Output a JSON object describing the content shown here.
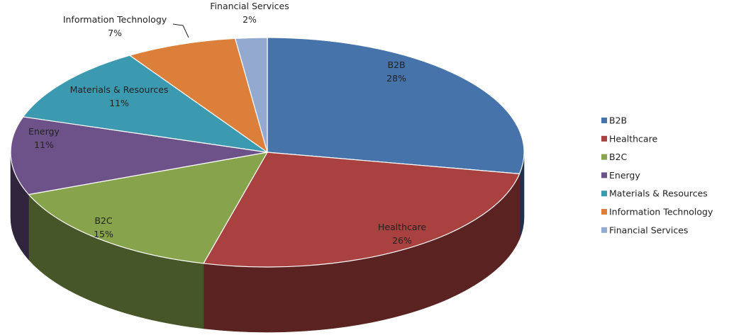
{
  "chart_data": {
    "type": "pie",
    "variant": "3d",
    "legend_position": "right",
    "slices": [
      {
        "name": "B2B",
        "value": 28,
        "value_label": "28%",
        "color": "#4674AA"
      },
      {
        "name": "Healthcare",
        "value": 26,
        "value_label": "26%",
        "color": "#A8413F"
      },
      {
        "name": "B2C",
        "value": 15,
        "value_label": "15%",
        "color": "#87A44C"
      },
      {
        "name": "Energy",
        "value": 11,
        "value_label": "11%",
        "color": "#6D5289"
      },
      {
        "name": "Materials & Resources",
        "value": 11,
        "value_label": "11%",
        "color": "#3C9AB0"
      },
      {
        "name": "Information Technology",
        "value": 7,
        "value_label": "7%",
        "color": "#DC7F3A"
      },
      {
        "name": "Financial Services",
        "value": 2,
        "value_label": "2%",
        "color": "#93A9CF"
      }
    ]
  }
}
